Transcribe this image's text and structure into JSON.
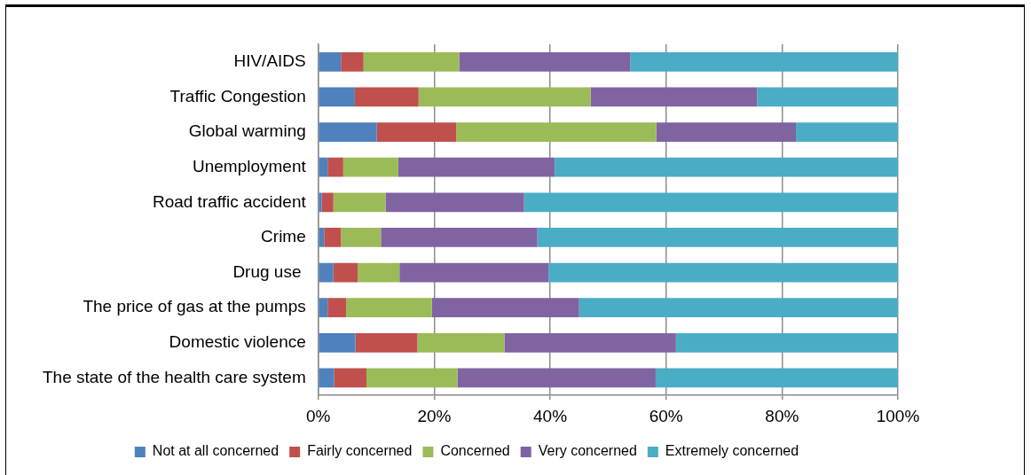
{
  "chart_data": {
    "type": "bar",
    "orientation": "horizontal",
    "stacked": true,
    "categories": [
      "HIV/AIDS",
      "Traffic Congestion",
      "Global warming",
      "Unemployment",
      "Road traffic accident",
      "Crime",
      "Drug use ",
      "The price of gas at the pumps",
      "Domestic violence",
      "The state of the health care system"
    ],
    "series": [
      {
        "name": "Not at all concerned",
        "color": "#4f81bd",
        "values": [
          3.9,
          6.3,
          10.1,
          1.6,
          0.6,
          1.0,
          2.6,
          1.6,
          6.4,
          2.7
        ]
      },
      {
        "name": "Fairly concerned",
        "color": "#c0504d",
        "values": [
          3.9,
          11.0,
          13.7,
          2.7,
          2.0,
          2.9,
          4.2,
          3.2,
          10.7,
          5.6
        ]
      },
      {
        "name": "Concerned",
        "color": "#9bbb59",
        "values": [
          16.5,
          29.7,
          34.5,
          9.5,
          9.0,
          6.9,
          7.2,
          14.8,
          15.0,
          15.7
        ]
      },
      {
        "name": "Very concerned",
        "color": "#8064a2",
        "values": [
          29.5,
          28.7,
          24.1,
          27.0,
          23.9,
          27.0,
          25.7,
          25.4,
          29.6,
          34.2
        ]
      },
      {
        "name": "Extremely concerned",
        "color": "#4bacc6",
        "values": [
          46.2,
          24.3,
          17.6,
          59.2,
          64.5,
          62.2,
          60.3,
          55.0,
          38.3,
          41.8
        ]
      }
    ],
    "xlim": [
      0,
      100
    ],
    "xticks": [
      {
        "value": 0,
        "label": "0%"
      },
      {
        "value": 20,
        "label": "20%"
      },
      {
        "value": 40,
        "label": "40%"
      },
      {
        "value": 60,
        "label": "60%"
      },
      {
        "value": 80,
        "label": "80%"
      },
      {
        "value": 100,
        "label": "100%"
      }
    ],
    "grid": "x",
    "legend": "bottom"
  }
}
